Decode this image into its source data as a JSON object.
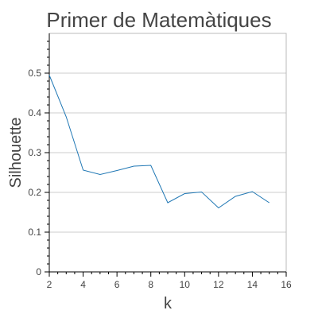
{
  "chart_data": {
    "type": "line",
    "title": "Primer de Matemàtiques",
    "xlabel": "k",
    "ylabel": "Silhouette",
    "xlim": [
      2,
      16
    ],
    "ylim": [
      0,
      0.6
    ],
    "x_ticks": [
      2,
      4,
      6,
      8,
      10,
      12,
      14,
      16
    ],
    "y_ticks": [
      0,
      0.1,
      0.2,
      0.3,
      0.4,
      0.5
    ],
    "grid": true,
    "series": [
      {
        "color": "#1f77b4",
        "x": [
          2,
          3,
          4,
          5,
          6,
          7,
          8,
          9,
          10,
          11,
          12,
          13,
          14,
          15
        ],
        "y": [
          0.495,
          0.39,
          0.256,
          0.245,
          0.255,
          0.266,
          0.268,
          0.174,
          0.197,
          0.201,
          0.161,
          0.19,
          0.202,
          0.174
        ]
      }
    ]
  }
}
